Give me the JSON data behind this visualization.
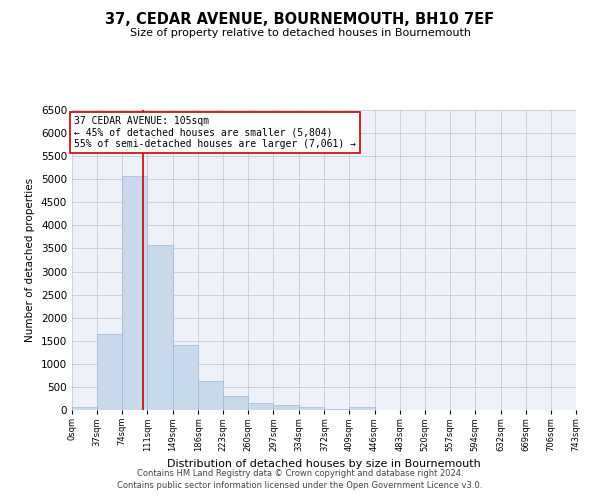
{
  "title": "37, CEDAR AVENUE, BOURNEMOUTH, BH10 7EF",
  "subtitle": "Size of property relative to detached houses in Bournemouth",
  "xlabel": "Distribution of detached houses by size in Bournemouth",
  "ylabel": "Number of detached properties",
  "bar_color": "#c9d9ec",
  "bar_edge_color": "#a0b8d8",
  "grid_color": "#c0ccd8",
  "background_color": "#eef2f8",
  "vline_x": 105,
  "vline_color": "#cc0000",
  "annotation_text": "37 CEDAR AVENUE: 105sqm\n← 45% of detached houses are smaller (5,804)\n55% of semi-detached houses are larger (7,061) →",
  "annotation_box_color": "#ffffff",
  "annotation_box_edge_color": "#cc0000",
  "bins": [
    0,
    37,
    74,
    111,
    149,
    186,
    223,
    260,
    297,
    334,
    372,
    409,
    446,
    483,
    520,
    557,
    594,
    632,
    669,
    706,
    743
  ],
  "values": [
    75,
    1640,
    5080,
    3580,
    1400,
    620,
    305,
    150,
    100,
    55,
    30,
    75,
    0,
    0,
    0,
    0,
    0,
    0,
    0,
    0
  ],
  "ylim": [
    0,
    6500
  ],
  "yticks": [
    0,
    500,
    1000,
    1500,
    2000,
    2500,
    3000,
    3500,
    4000,
    4500,
    5000,
    5500,
    6000,
    6500
  ],
  "footer_line1": "Contains HM Land Registry data © Crown copyright and database right 2024.",
  "footer_line2": "Contains public sector information licensed under the Open Government Licence v3.0."
}
